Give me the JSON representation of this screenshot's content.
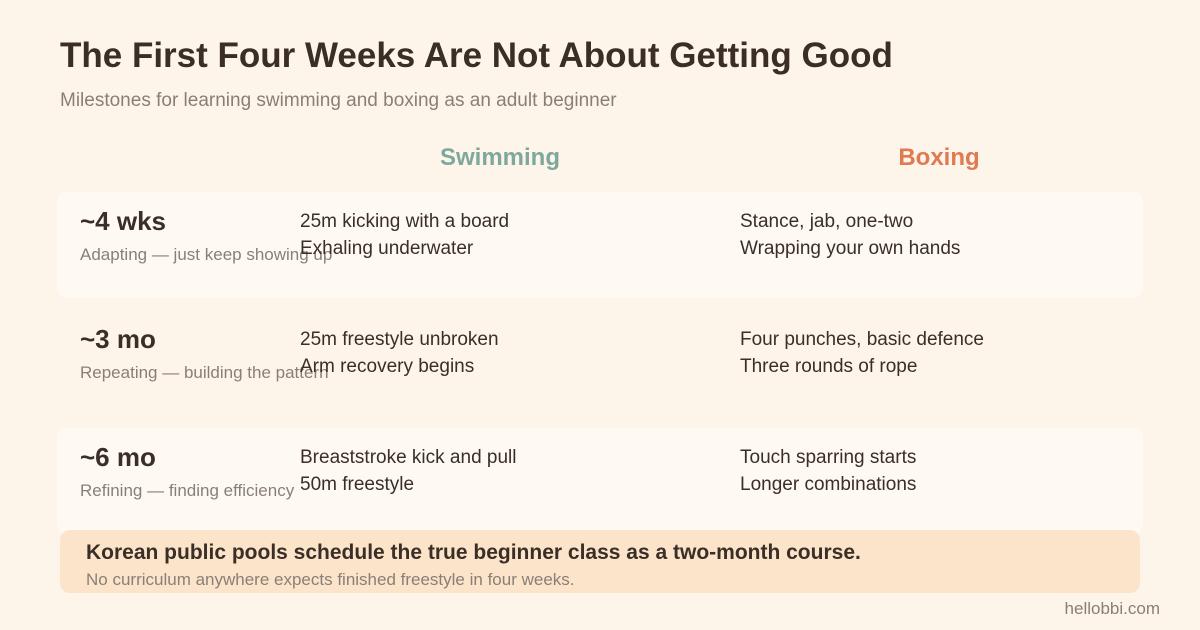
{
  "header": {
    "title": "The First Four Weeks Are Not About Getting Good",
    "subtitle": "Milestones for learning swimming and boxing as an adult beginner"
  },
  "columns": [
    "Swimming",
    "Boxing"
  ],
  "rows": [
    {
      "period": "~4 wks",
      "note": "Adapting — just keep showing up",
      "swimming": [
        "25m kicking with a board",
        "Exhaling underwater"
      ],
      "boxing": [
        "Stance, jab, one-two",
        "Wrapping your own hands"
      ]
    },
    {
      "period": "~3 mo",
      "note": "Repeating — building the pattern",
      "swimming": [
        "25m freestyle unbroken",
        "Arm recovery begins"
      ],
      "boxing": [
        "Four punches, basic defence",
        "Three rounds of rope"
      ]
    },
    {
      "period": "~6 mo",
      "note": "Refining — finding efficiency",
      "swimming": [
        "Breaststroke kick and pull",
        "50m freestyle"
      ],
      "boxing": [
        "Touch sparring starts",
        "Longer combinations"
      ]
    }
  ],
  "callout": {
    "title": "Korean public pools schedule the true beginner class as a two-month course.",
    "text": "No curriculum anywhere expects finished freestyle in four weeks."
  },
  "footer": "hellobbi.com"
}
